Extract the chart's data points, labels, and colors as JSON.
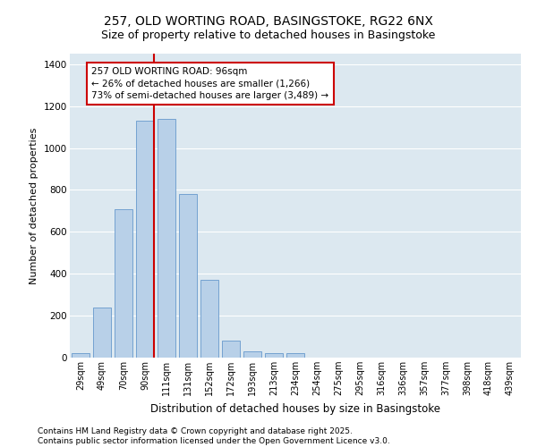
{
  "title_line1": "257, OLD WORTING ROAD, BASINGSTOKE, RG22 6NX",
  "title_line2": "Size of property relative to detached houses in Basingstoke",
  "xlabel": "Distribution of detached houses by size in Basingstoke",
  "ylabel": "Number of detached properties",
  "categories": [
    "29sqm",
    "49sqm",
    "70sqm",
    "90sqm",
    "111sqm",
    "131sqm",
    "152sqm",
    "172sqm",
    "193sqm",
    "213sqm",
    "234sqm",
    "254sqm",
    "275sqm",
    "295sqm",
    "316sqm",
    "336sqm",
    "357sqm",
    "377sqm",
    "398sqm",
    "418sqm",
    "439sqm"
  ],
  "values": [
    20,
    240,
    710,
    1130,
    1140,
    780,
    370,
    80,
    30,
    20,
    20,
    0,
    0,
    0,
    0,
    0,
    0,
    0,
    0,
    0,
    0
  ],
  "bar_color": "#b8d0e8",
  "bar_edge_color": "#6699cc",
  "vline_pos": 3.42,
  "vline_color": "#cc0000",
  "annotation_text": "257 OLD WORTING ROAD: 96sqm\n← 26% of detached houses are smaller (1,266)\n73% of semi-detached houses are larger (3,489) →",
  "annotation_box_facecolor": "#ffffff",
  "annotation_box_edgecolor": "#cc0000",
  "ylim": [
    0,
    1450
  ],
  "yticks": [
    0,
    200,
    400,
    600,
    800,
    1000,
    1200,
    1400
  ],
  "bg_color": "#dce8f0",
  "plot_bg_color": "#dce8f0",
  "footer_text": "Contains HM Land Registry data © Crown copyright and database right 2025.\nContains public sector information licensed under the Open Government Licence v3.0.",
  "title_fontsize": 10,
  "subtitle_fontsize": 9,
  "axis_label_fontsize": 8,
  "tick_fontsize": 7,
  "annotation_fontsize": 7.5,
  "footer_fontsize": 6.5
}
